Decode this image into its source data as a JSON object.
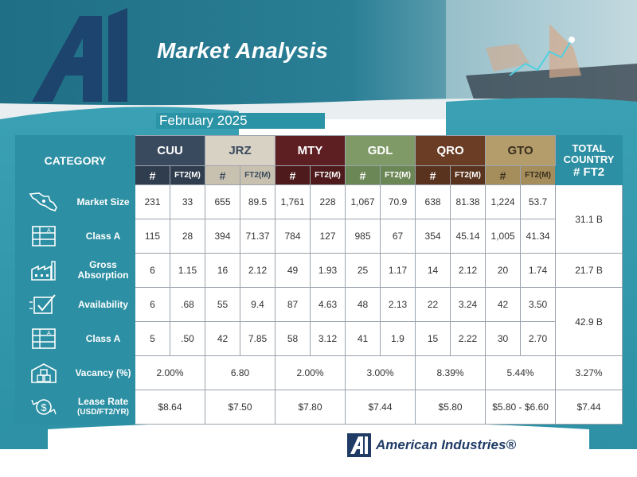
{
  "header": {
    "logo_text": "Ai",
    "title": "Market Analysis",
    "date": "February 2025"
  },
  "table": {
    "category_header": "CATEGORY",
    "cities": [
      "CUU",
      "JRZ",
      "MTY",
      "GDL",
      "QRO",
      "GTO"
    ],
    "sub_count": "#",
    "sub_ft2": "FT2(M)",
    "total_header_line1": "TOTAL",
    "total_header_line2": "COUNTRY",
    "total_header_line3": "# FT2",
    "rows": [
      {
        "label": "Market Size",
        "icon": "mexico-map-icon",
        "values": [
          "231",
          "33",
          "655",
          "89.5",
          "1,761",
          "228",
          "1,067",
          "70.9",
          "638",
          "81.38",
          "1,224",
          "53.7"
        ]
      },
      {
        "label": "Class A",
        "icon": "building-icon",
        "values": [
          "115",
          "28",
          "394",
          "71.37",
          "784",
          "127",
          "985",
          "67",
          "354",
          "45.14",
          "1,005",
          "41.34"
        ]
      },
      {
        "label": "Gross Absorption",
        "icon": "factory-icon",
        "values": [
          "6",
          "1.15",
          "16",
          "2.12",
          "49",
          "1.93",
          "25",
          "1.17",
          "14",
          "2.12",
          "20",
          "1.74"
        ]
      },
      {
        "label": "Availability",
        "icon": "checkbox-icon",
        "values": [
          "6",
          ".68",
          "55",
          "9.4",
          "87",
          "4.63",
          "48",
          "2.13",
          "22",
          "3.24",
          "42",
          "3.50"
        ]
      },
      {
        "label": "Class A",
        "icon": "building-icon",
        "values": [
          "5",
          ".50",
          "42",
          "7.85",
          "58",
          "3.12",
          "41",
          "1.9",
          "15",
          "2.22",
          "30",
          "2.70"
        ]
      }
    ],
    "totals": {
      "market_size_class_a": "31.1 B",
      "gross_absorption": "21.7 B",
      "availability_class_a": "42.9 B"
    },
    "vacancy": {
      "label": "Vacancy (%)",
      "icon": "warehouse-boxes-icon",
      "values": [
        "2.00%",
        "6.80",
        "2.00%",
        "3.00%",
        "8.39%",
        "5.44%"
      ],
      "total": "3.27%"
    },
    "lease": {
      "label_line1": "Lease Rate",
      "label_line2": "(USD/FT2/YR)",
      "icon": "dollar-cycle-icon",
      "values": [
        "$8.64",
        "$7.50",
        "$7.80",
        "$7.44",
        "$5.80",
        "$5.80 - $6.60"
      ],
      "total": "$7.44"
    }
  },
  "footer": {
    "brand": "American Industries®"
  },
  "colors": {
    "teal": "#2c8fa3",
    "navy": "#1f3b66",
    "cuu": "#3a4a5e",
    "jrz": "#d8d2c4",
    "mty": "#5e1f22",
    "gdl": "#7f9a67",
    "qro": "#6a3d24",
    "gto": "#b49d6b"
  }
}
